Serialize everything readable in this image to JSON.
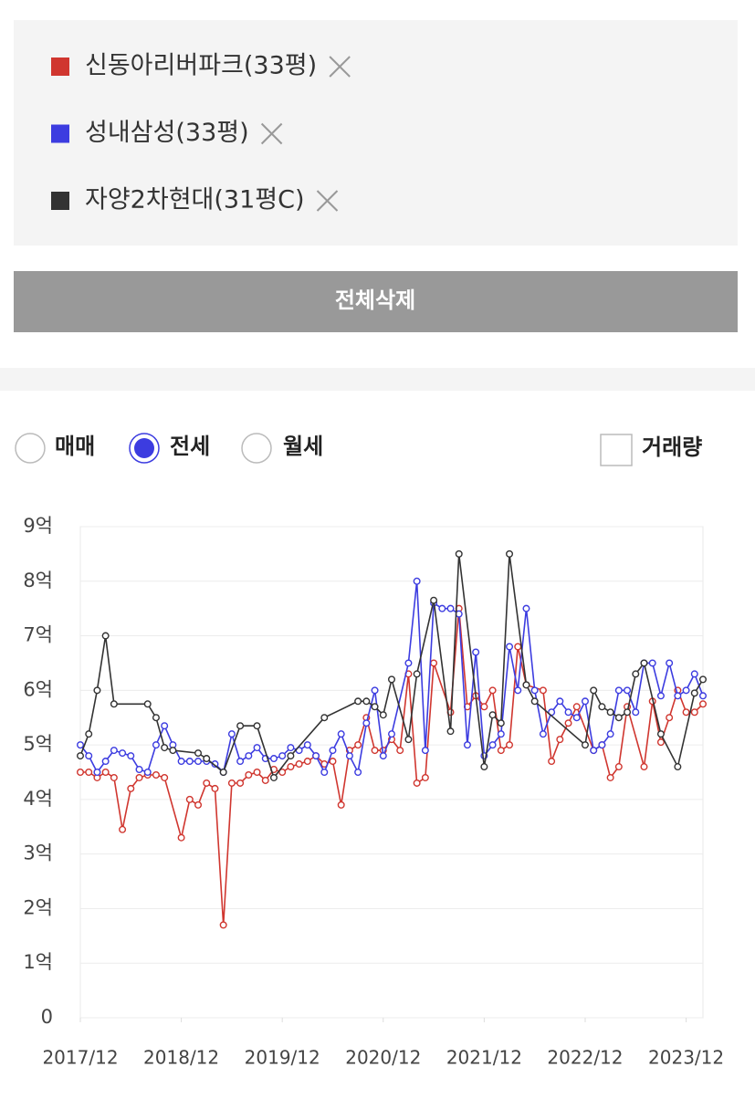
{
  "controls": {
    "button": "전체삭제",
    "radios": [
      "매매",
      "전세",
      "월세"
    ],
    "checkbox": "거래량"
  },
  "chart_data": {
    "type": "line",
    "xlim": [
      "2017/12",
      "2024/02"
    ],
    "xticks": [
      "2017/12",
      "2018/12",
      "2019/12",
      "2020/12",
      "2021/12",
      "2022/12",
      "2023/12"
    ],
    "ylim": [
      0,
      9
    ],
    "yticks": [
      0,
      {
        "value": 1,
        "label": "1억"
      },
      {
        "value": 2,
        "label": "2억"
      },
      {
        "value": 3,
        "label": "3억"
      },
      {
        "value": 4,
        "label": "4억"
      },
      {
        "value": 5,
        "label": "5억"
      },
      {
        "value": 6,
        "label": "6억"
      },
      {
        "value": 7,
        "label": "7억"
      },
      {
        "value": 8,
        "label": "8억"
      },
      {
        "value": 9,
        "label": "9억"
      }
    ],
    "grid": true,
    "series": [
      {
        "name": "신동아리버파크(33평)",
        "color": "#d0362f",
        "x": [
          "2017/12",
          "2018/01",
          "2018/02",
          "2018/03",
          "2018/04",
          "2018/05",
          "2018/06",
          "2018/07",
          "2018/08",
          "2018/09",
          "2018/10",
          "2018/12",
          "2019/01",
          "2019/02",
          "2019/03",
          "2019/04",
          "2019/05",
          "2019/06",
          "2019/07",
          "2019/08",
          "2019/09",
          "2019/10",
          "2019/11",
          "2019/12",
          "2020/01",
          "2020/02",
          "2020/03",
          "2020/04",
          "2020/05",
          "2020/06",
          "2020/07",
          "2020/08",
          "2020/09",
          "2020/10",
          "2020/11",
          "2020/12",
          "2021/01",
          "2021/02",
          "2021/03",
          "2021/04",
          "2021/05",
          "2021/06",
          "2021/08",
          "2021/09",
          "2021/10",
          "2021/11",
          "2021/12",
          "2022/01",
          "2022/02",
          "2022/03",
          "2022/04",
          "2022/05",
          "2022/07",
          "2022/08",
          "2022/09",
          "2022/10",
          "2022/11",
          "2023/01",
          "2023/02",
          "2023/03",
          "2023/04",
          "2023/05",
          "2023/07",
          "2023/08",
          "2023/09",
          "2023/10",
          "2023/11",
          "2023/12",
          "2024/01",
          "2024/02"
        ],
        "values": [
          4.5,
          4.5,
          4.4,
          4.5,
          4.4,
          3.45,
          4.2,
          4.4,
          4.45,
          4.45,
          4.4,
          3.3,
          4.0,
          3.9,
          4.3,
          4.2,
          1.7,
          4.3,
          4.3,
          4.45,
          4.5,
          4.35,
          4.55,
          4.5,
          4.6,
          4.65,
          4.7,
          4.8,
          4.65,
          4.7,
          3.9,
          4.9,
          5.0,
          5.5,
          4.9,
          4.9,
          5.1,
          4.9,
          6.3,
          4.3,
          4.4,
          6.5,
          5.6,
          7.5,
          5.7,
          5.9,
          5.7,
          6.0,
          4.9,
          5.0,
          6.8,
          6.1,
          6.0,
          4.7,
          5.1,
          5.4,
          5.7,
          4.9,
          5.0,
          4.4,
          4.6,
          5.7,
          4.6,
          5.8,
          5.05,
          5.5,
          6.0,
          5.6,
          5.6,
          5.75
        ]
      },
      {
        "name": "성내삼성(33평)",
        "color": "#3c3ce0",
        "x": [
          "2017/12",
          "2018/01",
          "2018/02",
          "2018/03",
          "2018/04",
          "2018/05",
          "2018/06",
          "2018/07",
          "2018/08",
          "2018/09",
          "2018/10",
          "2018/11",
          "2018/12",
          "2019/01",
          "2019/02",
          "2019/03",
          "2019/04",
          "2019/05",
          "2019/06",
          "2019/07",
          "2019/08",
          "2019/09",
          "2019/10",
          "2019/11",
          "2019/12",
          "2020/01",
          "2020/02",
          "2020/03",
          "2020/04",
          "2020/05",
          "2020/06",
          "2020/07",
          "2020/08",
          "2020/09",
          "2020/10",
          "2020/11",
          "2020/12",
          "2021/01",
          "2021/03",
          "2021/04",
          "2021/05",
          "2021/06",
          "2021/07",
          "2021/08",
          "2021/09",
          "2021/10",
          "2021/11",
          "2021/12",
          "2022/01",
          "2022/02",
          "2022/03",
          "2022/04",
          "2022/05",
          "2022/06",
          "2022/07",
          "2022/08",
          "2022/09",
          "2022/10",
          "2022/11",
          "2022/12",
          "2023/01",
          "2023/02",
          "2023/03",
          "2023/04",
          "2023/05",
          "2023/06",
          "2023/07",
          "2023/08",
          "2023/09",
          "2023/10",
          "2023/11",
          "2023/12",
          "2024/01",
          "2024/02"
        ],
        "values": [
          5.0,
          4.8,
          4.5,
          4.7,
          4.9,
          4.85,
          4.8,
          4.55,
          4.5,
          5.0,
          5.35,
          5.0,
          4.7,
          4.7,
          4.7,
          4.7,
          4.65,
          4.5,
          5.2,
          4.7,
          4.8,
          4.95,
          4.75,
          4.75,
          4.8,
          4.95,
          4.9,
          5.0,
          4.8,
          4.5,
          4.9,
          5.2,
          4.8,
          4.5,
          5.4,
          6.0,
          4.8,
          5.2,
          6.5,
          8.0,
          4.9,
          7.6,
          7.5,
          7.5,
          7.4,
          5.0,
          6.7,
          4.8,
          5.0,
          5.2,
          6.8,
          6.0,
          7.5,
          6.0,
          5.2,
          5.6,
          5.8,
          5.6,
          5.5,
          5.8,
          4.9,
          5.0,
          5.2,
          6.0,
          6.0,
          5.6,
          6.5,
          6.5,
          5.9,
          6.5,
          5.9,
          6.0,
          6.3,
          5.9
        ]
      },
      {
        "name": "자양2차현대(31평C)",
        "color": "#333333",
        "x": [
          "2017/12",
          "2018/01",
          "2018/02",
          "2018/03",
          "2018/04",
          "2018/08",
          "2018/09",
          "2018/10",
          "2018/11",
          "2019/02",
          "2019/03",
          "2019/05",
          "2019/07",
          "2019/09",
          "2019/11",
          "2020/01",
          "2020/05",
          "2020/09",
          "2020/10",
          "2020/11",
          "2020/12",
          "2021/01",
          "2021/03",
          "2021/04",
          "2021/06",
          "2021/08",
          "2021/09",
          "2021/12",
          "2022/01",
          "2022/02",
          "2022/03",
          "2022/05",
          "2022/06",
          "2022/12",
          "2023/01",
          "2023/02",
          "2023/03",
          "2023/04",
          "2023/05",
          "2023/06",
          "2023/07",
          "2023/09",
          "2023/11",
          "2024/01",
          "2024/02"
        ],
        "values": [
          4.8,
          5.2,
          6.0,
          7.0,
          5.75,
          5.75,
          5.5,
          4.95,
          4.9,
          4.85,
          4.75,
          4.5,
          5.35,
          5.35,
          4.4,
          4.8,
          5.5,
          5.8,
          5.8,
          5.7,
          5.55,
          6.2,
          5.1,
          6.3,
          7.65,
          5.25,
          8.5,
          4.6,
          5.55,
          5.4,
          8.5,
          6.1,
          5.8,
          5.0,
          6.0,
          5.7,
          5.6,
          5.5,
          5.6,
          6.3,
          6.5,
          5.2,
          4.6,
          5.95,
          6.2
        ]
      }
    ]
  }
}
